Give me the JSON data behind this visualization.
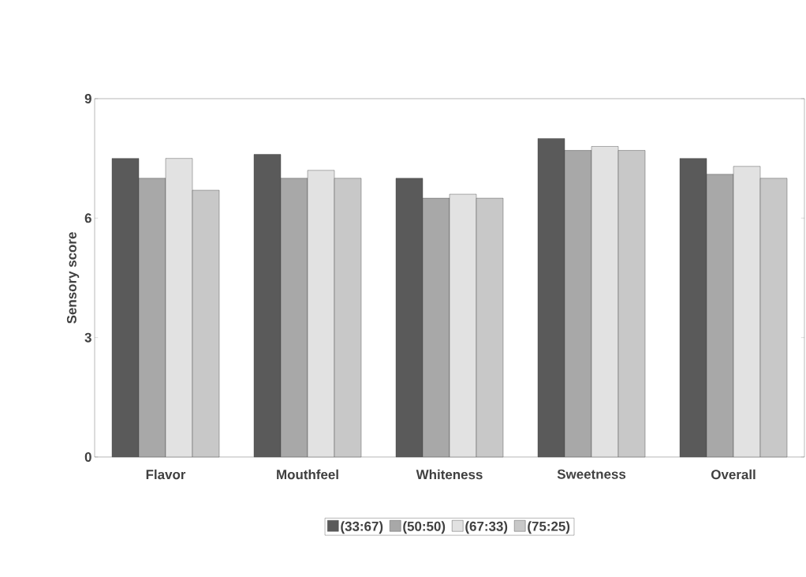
{
  "chart_data": {
    "type": "bar",
    "ylabel": "Sensory score",
    "categories": [
      "Flavor",
      "Mouthfeel",
      "Whiteness",
      "Sweetness",
      "Overall"
    ],
    "series": [
      {
        "name": "(33:67)",
        "color": "#5a5a5a",
        "values": [
          7.5,
          7.6,
          7.0,
          8.0,
          7.5
        ]
      },
      {
        "name": "(50:50)",
        "color": "#a8a8a8",
        "values": [
          7.0,
          7.0,
          6.5,
          7.7,
          7.1
        ]
      },
      {
        "name": "(67:33)",
        "color": "#e2e2e2",
        "values": [
          7.5,
          7.2,
          6.6,
          7.8,
          7.3
        ]
      },
      {
        "name": "(75:25)",
        "color": "#c8c8c8",
        "values": [
          6.7,
          7.0,
          6.5,
          7.7,
          7.0
        ]
      }
    ],
    "ylim": [
      0,
      9
    ],
    "yticks": [
      0,
      3,
      6,
      9
    ],
    "grid": false,
    "legend": "bottom"
  }
}
